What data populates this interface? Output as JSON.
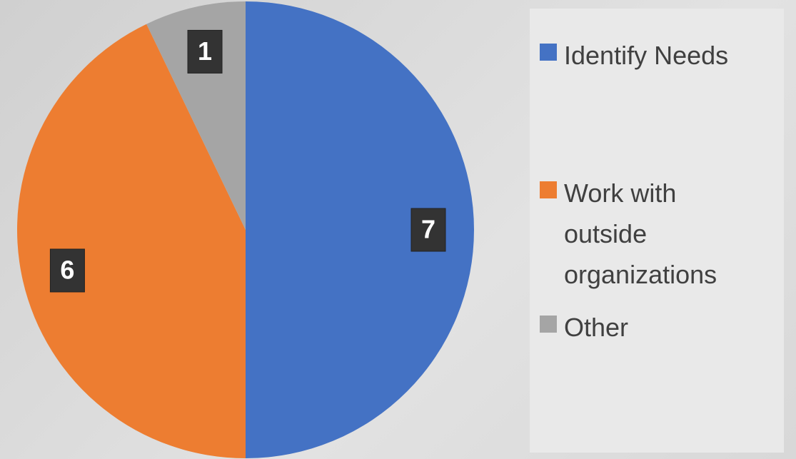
{
  "chart_data": {
    "type": "pie",
    "categories": [
      "Identify Needs",
      "Work with outside organizations",
      "Other"
    ],
    "values": [
      7,
      6,
      1
    ],
    "colors": [
      "#4472c4",
      "#ed7d31",
      "#a5a5a5"
    ],
    "legend": "right"
  }
}
